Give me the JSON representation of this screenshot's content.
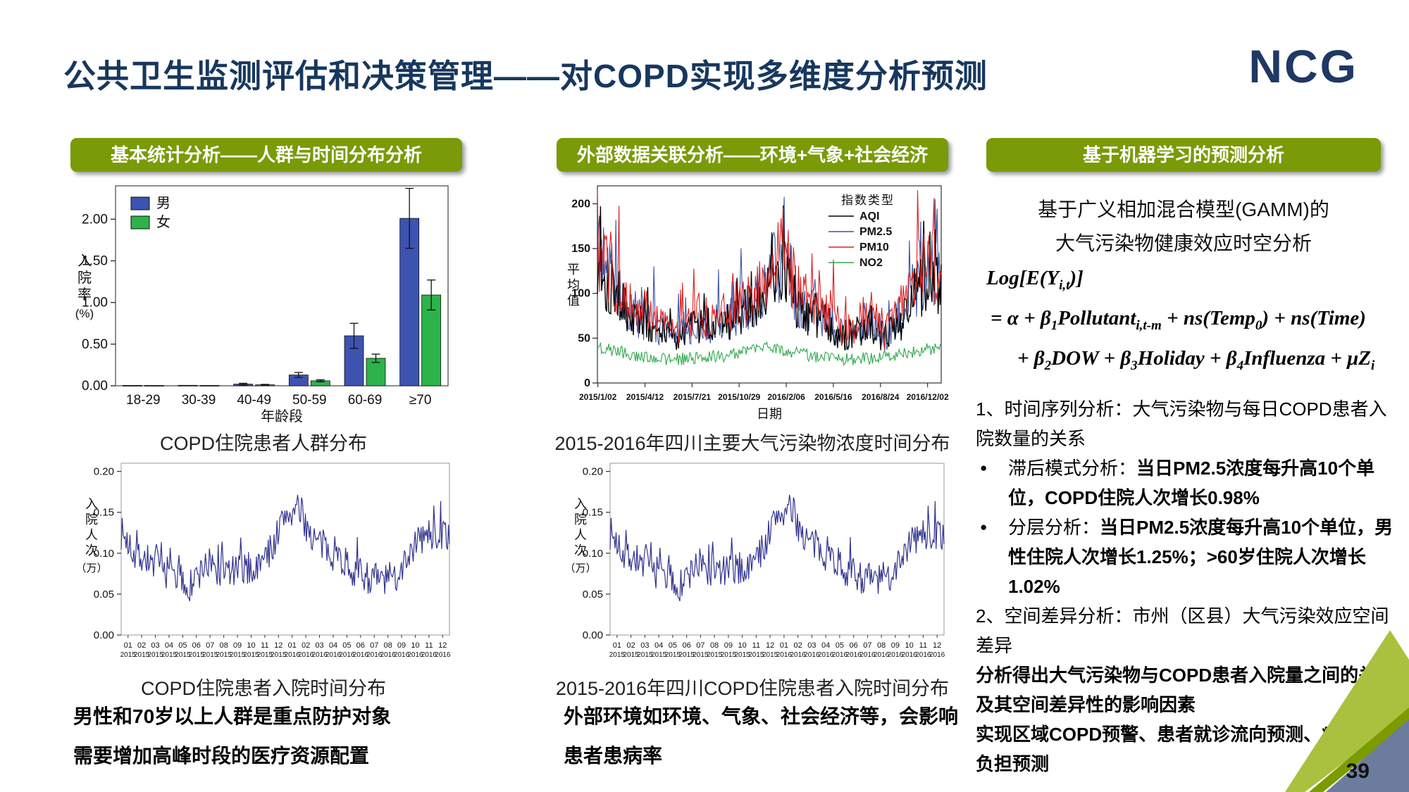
{
  "slide": {
    "title": "公共卫生监测评估和决策管理——对COPD实现多维度分析预测",
    "logo": "NCG",
    "page_number": "39"
  },
  "columns": {
    "col1": {
      "header": "基本统计分析——人群与时间分布分析",
      "caption_top": "COPD住院患者人群分布",
      "caption_bottom": "COPD住院患者入院时间分布",
      "conclusion_lines": [
        "男性和70岁以上人群是重点防护对象",
        "需要增加高峰时段的医疗资源配置"
      ]
    },
    "col2": {
      "header": "外部数据关联分析——环境+气象+社会经济",
      "caption_top": "2015-2016年四川主要大气污染物浓度时间分布",
      "caption_bottom": "2015-2016年四川COPD住院患者入院时间分布",
      "conclusion_lines": [
        "外部环境如环境、气象、社会经济等，会影响",
        "患者患病率"
      ]
    },
    "col3": {
      "header": "基于机器学习的预测分析",
      "intro_lines": [
        "基于广义相加混合模型(GAMM)的",
        "大气污染物健康效应时空分析"
      ],
      "formula_lines": [
        "Log[E(Y_i,t_)]",
        "= α + β_1_Pollutant_i,t-m_ + ns(Temp_0_) + ns(Time)",
        "+ β_2_DOW + β_3_Holiday + β_4_Influenza + μZ_i_"
      ],
      "analysis": [
        {
          "bullet": false,
          "segments": [
            {
              "text": "1、时间序列分析：大气污染物与每日COPD患者入院数量的关系",
              "bold": false
            }
          ]
        },
        {
          "bullet": true,
          "segments": [
            {
              "text": "滞后模式分析：",
              "bold": false
            },
            {
              "text": "当日PM2.5浓度每升高10个单位，COPD住院人次增长0.98%",
              "bold": true
            }
          ]
        },
        {
          "bullet": true,
          "segments": [
            {
              "text": "分层分析：",
              "bold": false
            },
            {
              "text": "当日PM2.5浓度每升高10个单位，男性住院人次增长1.25%；>60岁住院人次增长1.02%",
              "bold": true
            }
          ]
        },
        {
          "bullet": false,
          "segments": [
            {
              "text": "2、空间差异分析：市州（区县）大气污染效应空间差异",
              "bold": false
            }
          ]
        },
        {
          "bullet": false,
          "segments": [
            {
              "text": "分析得出大气污染物与COPD患者入院量之间的关系及其空间差异性的影响因素",
              "bold": true
            }
          ]
        },
        {
          "bullet": false,
          "segments": [
            {
              "text": "实现区域COPD预警、患者就诊流向预测、疾病经济负担预测",
              "bold": true
            }
          ]
        }
      ]
    }
  },
  "chart_data": [
    {
      "id": "age_gender_bar",
      "type": "bar",
      "title": "COPD住院患者人群分布",
      "xlabel": "年龄段",
      "ylabel_main": "入院率",
      "ylabel_unit": "(%)",
      "categories": [
        "18-29",
        "30-39",
        "40-49",
        "50-59",
        "60-69",
        "≥70"
      ],
      "yticks": [
        0.0,
        0.5,
        1.0,
        1.5,
        2.0
      ],
      "ylim": [
        0,
        2.4
      ],
      "series": [
        {
          "name": "男",
          "color": "#3D53B0",
          "values": [
            0.005,
            0.006,
            0.02,
            0.13,
            0.6,
            2.01
          ],
          "errors": [
            0.002,
            0.002,
            0.01,
            0.03,
            0.15,
            0.36
          ]
        },
        {
          "name": "女",
          "color": "#2CB34A",
          "values": [
            0.004,
            0.005,
            0.012,
            0.06,
            0.33,
            1.09
          ],
          "errors": [
            0.001,
            0.001,
            0.005,
            0.012,
            0.05,
            0.18
          ]
        }
      ]
    },
    {
      "id": "pollutant_ts",
      "type": "line",
      "title": "2015-2016年四川主要大气污染物浓度时间分布",
      "xlabel": "日期",
      "ylabel_main": "平均值",
      "ylabel_unit": "",
      "yticks": [
        0,
        50,
        100,
        150,
        200
      ],
      "ylim": [
        0,
        220
      ],
      "xticklabels": [
        "2015/1/02",
        "2015/4/12",
        "2015/7/21",
        "2015/10/29",
        "2016/2/06",
        "2016/5/16",
        "2016/8/24",
        "2016/12/02"
      ],
      "legend_title": "指数类型",
      "note": "daily values synthesized from monthly mean levels",
      "series": [
        {
          "name": "AQI",
          "color": "#000000",
          "monthly_means": [
            128,
            106,
            76,
            67,
            60,
            49,
            57,
            62,
            60,
            65,
            74,
            82,
            112,
            122,
            82,
            74,
            68,
            48,
            57,
            65,
            48,
            65,
            92,
            108
          ]
        },
        {
          "name": "PM2.5",
          "color": "#3C55A5",
          "monthly_means": [
            138,
            115,
            81,
            72,
            64,
            52,
            61,
            66,
            64,
            70,
            79,
            88,
            120,
            130,
            88,
            79,
            73,
            51,
            61,
            70,
            51,
            70,
            99,
            116
          ]
        },
        {
          "name": "PM10",
          "color": "#DD2222",
          "monthly_means": [
            150,
            125,
            88,
            78,
            70,
            57,
            66,
            72,
            70,
            76,
            86,
            96,
            132,
            142,
            96,
            86,
            80,
            56,
            66,
            76,
            56,
            76,
            108,
            126
          ]
        },
        {
          "name": "NO2",
          "color": "#2FA84F",
          "monthly_means": [
            40,
            37,
            33,
            30,
            28,
            26,
            27,
            28,
            29,
            31,
            34,
            37,
            39,
            37,
            33,
            30,
            28,
            26,
            27,
            28,
            29,
            32,
            35,
            38
          ]
        }
      ]
    },
    {
      "id": "admission_ts",
      "type": "line",
      "title": "COPD住院患者入院时间分布",
      "ylabel_main": "入院人次",
      "ylabel_unit": "（万）",
      "yticks": [
        0.0,
        0.05,
        0.1,
        0.15,
        0.2
      ],
      "ylim": [
        0,
        0.21
      ],
      "x_months": [
        "01",
        "02",
        "03",
        "04",
        "05",
        "06",
        "07",
        "08",
        "09",
        "10",
        "11",
        "12",
        "01",
        "02",
        "03",
        "04",
        "05",
        "06",
        "07",
        "08",
        "09",
        "10",
        "11",
        "12"
      ],
      "x_years": [
        "2015",
        "2015",
        "2015",
        "2015",
        "2015",
        "2015",
        "2015",
        "2015",
        "2015",
        "2015",
        "2015",
        "2015",
        "2016",
        "2016",
        "2016",
        "2016",
        "2016",
        "2016",
        "2016",
        "2016",
        "2016",
        "2016",
        "2016",
        "2016"
      ],
      "note": "daily values synthesized from monthly mean levels",
      "series": [
        {
          "name": "入院人次",
          "color": "#31338F",
          "monthly_means": [
            0.125,
            0.1,
            0.092,
            0.08,
            0.072,
            0.058,
            0.082,
            0.079,
            0.077,
            0.081,
            0.082,
            0.108,
            0.148,
            0.152,
            0.118,
            0.104,
            0.094,
            0.079,
            0.071,
            0.067,
            0.07,
            0.102,
            0.12,
            0.123
          ]
        }
      ]
    }
  ]
}
